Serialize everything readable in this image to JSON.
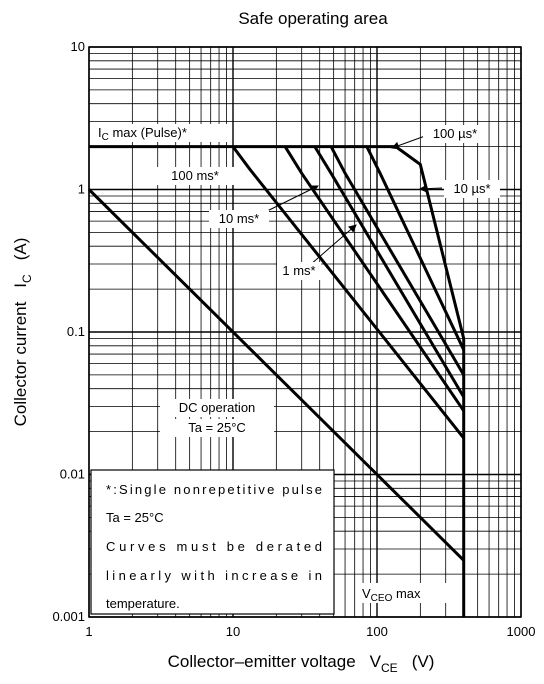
{
  "chart_data": {
    "type": "line",
    "title": "Safe operating area",
    "x_scale": "log",
    "y_scale": "log",
    "xlim": [
      1,
      1000
    ],
    "ylim": [
      0.001,
      10
    ],
    "grid": true,
    "x_ticks": [
      "1",
      "10",
      "100",
      "1000"
    ],
    "y_ticks": [
      "0.001",
      "0.01",
      "0.1",
      "1",
      "10"
    ],
    "xlabel": {
      "main": "Collector–emitter voltage",
      "symbol": "V",
      "sub": "CE",
      "unit": "(V)"
    },
    "ylabel": {
      "main": "Collector current",
      "symbol": "I",
      "sub": "C",
      "unit": "(A)"
    },
    "series": [
      {
        "name": "DC operation",
        "points": [
          [
            1,
            1
          ],
          [
            400,
            0.0025
          ]
        ]
      },
      {
        "name": "100 ms*",
        "points": [
          [
            10,
            2
          ],
          [
            13,
            1.4
          ],
          [
            400,
            0.018
          ]
        ]
      },
      {
        "name": "10 ms*",
        "points": [
          [
            23,
            2
          ],
          [
            30,
            1.3
          ],
          [
            400,
            0.028
          ]
        ]
      },
      {
        "name": "1 ms*",
        "points": [
          [
            37,
            2
          ],
          [
            48,
            1.3
          ],
          [
            400,
            0.035
          ]
        ]
      },
      {
        "name": "100 µs*",
        "points": [
          [
            48,
            2
          ],
          [
            60,
            1.3
          ],
          [
            400,
            0.05
          ]
        ]
      },
      {
        "name": "10 µs*",
        "points": [
          [
            85,
            2
          ],
          [
            105,
            1.3
          ],
          [
            400,
            0.075
          ]
        ]
      },
      {
        "name": "10 µs*",
        "points": [
          [
            135,
            2
          ],
          [
            200,
            1.5
          ],
          [
            400,
            0.09
          ]
        ]
      },
      {
        "name": "I C max (Pulse)*",
        "points": [
          [
            1,
            2
          ],
          [
            135,
            2
          ]
        ]
      },
      {
        "name": "V CEO max",
        "points": [
          [
            400,
            0.09
          ],
          [
            400,
            0.001
          ]
        ]
      }
    ],
    "labels": {
      "icmax": {
        "main": "I",
        "sub": "C",
        "rest": " max (Pulse)*"
      },
      "ms100": "100 ms*",
      "ms10": "10 ms*",
      "ms1": "1 ms*",
      "us100": "100 µs*",
      "us10": "10 µs*",
      "dc1": "DC operation",
      "dc2": "Ta = 25°C",
      "vceo": {
        "main": "V",
        "sub": "CEO",
        "rest": " max"
      }
    },
    "note": [
      "*:Single nonrepetitive pulse",
      "Ta = 25°C",
      "Curves must be derated",
      "linearly with increase in",
      "temperature."
    ]
  }
}
